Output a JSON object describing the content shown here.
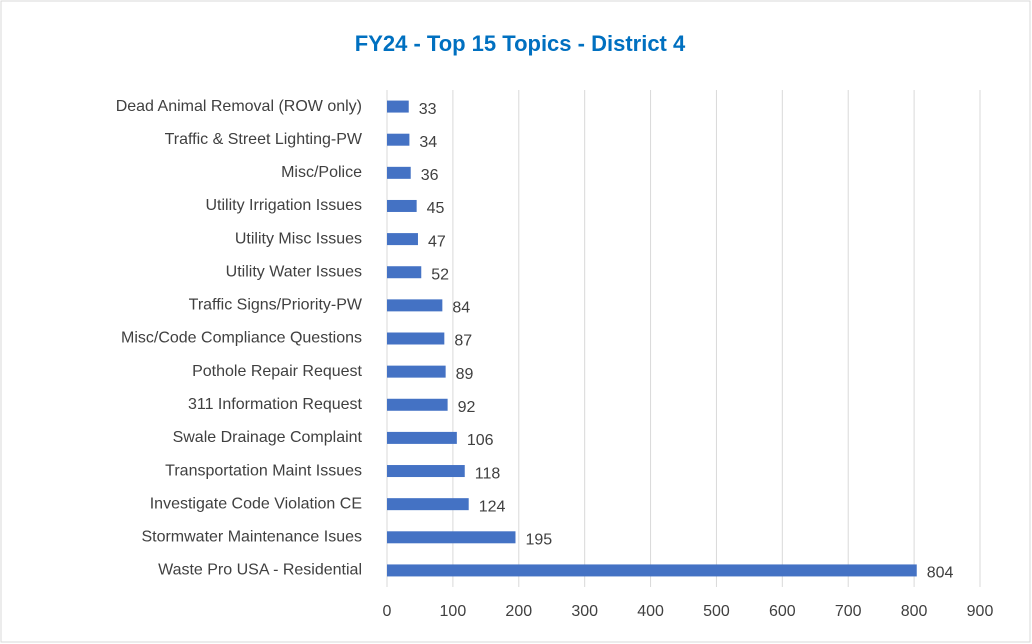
{
  "chart_data": {
    "type": "bar",
    "orientation": "horizontal",
    "title": "FY24 - Top 15 Topics - District 4",
    "categories": [
      "Dead Animal Removal (ROW only)",
      "Traffic & Street Lighting-PW",
      "Misc/Police",
      "Utility Irrigation Issues",
      "Utility Misc Issues",
      "Utility Water Issues",
      "Traffic Signs/Priority-PW",
      "Misc/Code Compliance Questions",
      "Pothole Repair Request",
      "311 Information Request",
      "Swale Drainage Complaint",
      "Transportation Maint Issues",
      "Investigate Code Violation CE",
      "Stormwater Maintenance Isues",
      "Waste Pro USA - Residential"
    ],
    "values": [
      33,
      34,
      36,
      45,
      47,
      52,
      84,
      87,
      89,
      92,
      106,
      118,
      124,
      195,
      804
    ],
    "color": "#4472c4",
    "xlim": [
      0,
      900
    ],
    "xticks": [
      0,
      100,
      200,
      300,
      400,
      500,
      600,
      700,
      800,
      900
    ],
    "grid": true
  }
}
